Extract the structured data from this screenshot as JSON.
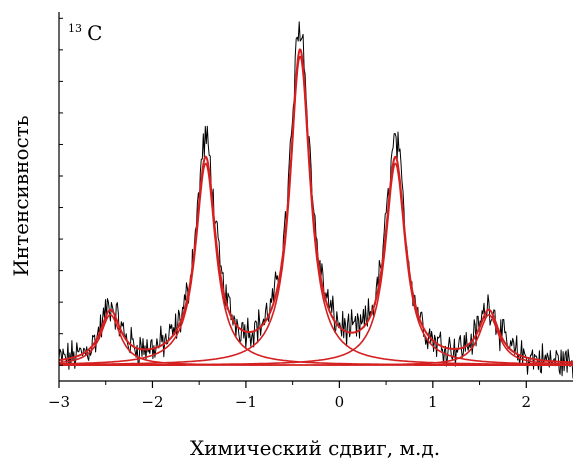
{
  "chart_data": {
    "type": "line",
    "nucleus_label": {
      "mass": "13",
      "symbol": "C"
    },
    "xlabel": "Химический сдвиг, м.д.",
    "ylabel": "Интенсивность",
    "xlim": [
      -3,
      2.5
    ],
    "ylim": [
      -0.05,
      1.12
    ],
    "xticks": [
      -3,
      -2,
      -1,
      0,
      1,
      2
    ],
    "xtick_labels": [
      "−3",
      "−2",
      "−1",
      "0",
      "1",
      "2"
    ],
    "y_ticks_labeled": false,
    "grid": false,
    "colors": {
      "experimental": "#000000",
      "fit": "#d42020"
    },
    "series": [
      {
        "role": "experimental",
        "color": "#000000",
        "values": "noisy measured spectrum (approximated)"
      },
      {
        "role": "fit",
        "color": "#d42020",
        "shape": "lorentzian",
        "width": 0.13,
        "components": [
          {
            "center": -2.45,
            "height": 0.16
          },
          {
            "center": -1.43,
            "height": 0.64
          },
          {
            "center": -0.42,
            "height": 0.98
          },
          {
            "center": 0.6,
            "height": 0.64
          },
          {
            "center": 1.6,
            "height": 0.16
          }
        ]
      }
    ]
  }
}
